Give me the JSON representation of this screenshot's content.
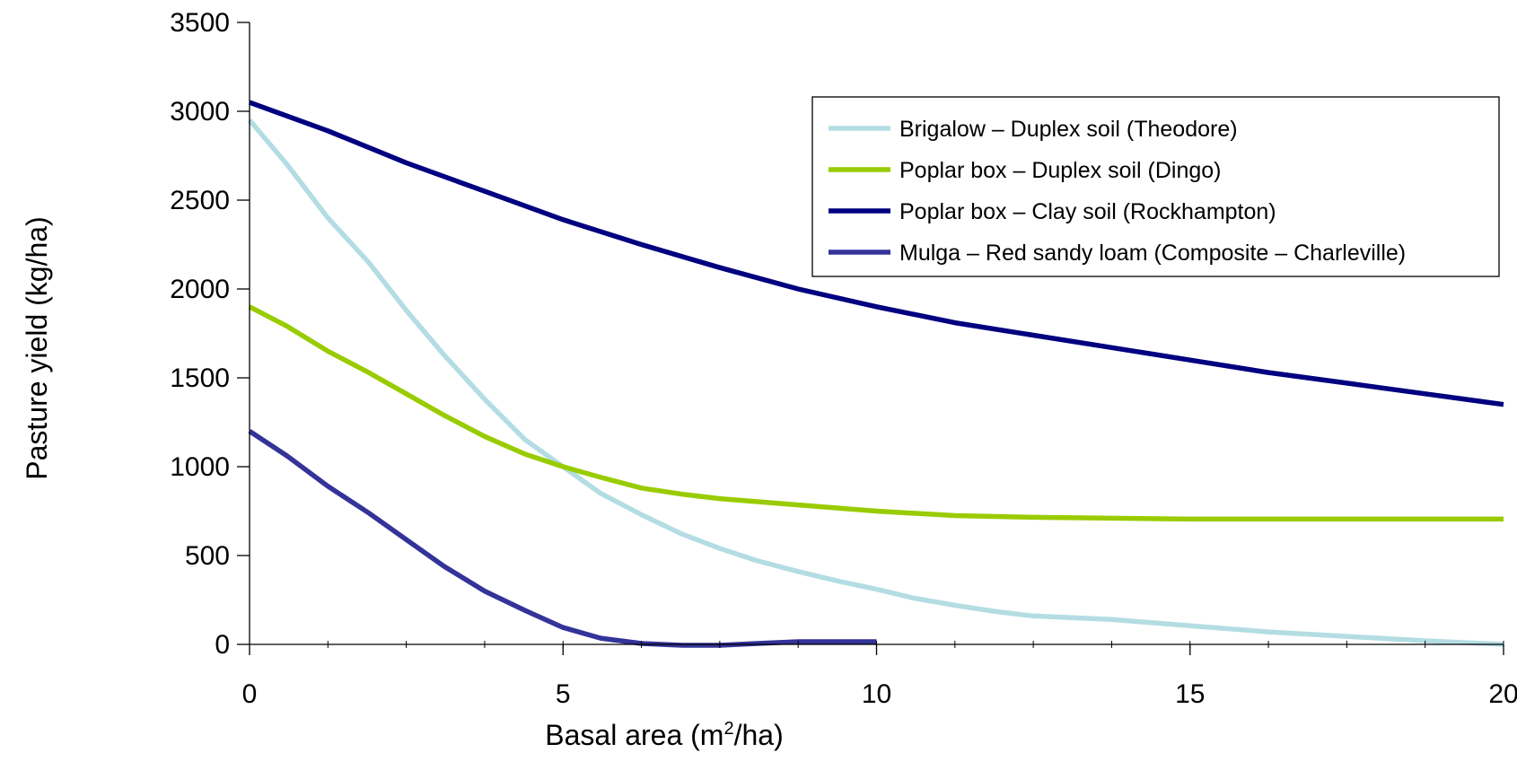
{
  "chart_data": {
    "type": "line",
    "title": "",
    "xlabel_main": "Basal area (m",
    "xlabel_sup": "2",
    "xlabel_tail": "/ha)",
    "ylabel": "Pasture yield (kg/ha)",
    "xlim": [
      0,
      20
    ],
    "ylim": [
      0,
      3500
    ],
    "xticks": [
      "0",
      "5",
      "10",
      "15",
      "20"
    ],
    "yticks": [
      "0",
      "500",
      "1000",
      "1500",
      "2000",
      "2500",
      "3000",
      "3500"
    ],
    "grid": false,
    "legend_position": "top-right",
    "series": [
      {
        "name": "Brigalow – Duplex soil (Theodore)",
        "color": "#b3dde3",
        "x": [
          0,
          0.6,
          1.25,
          1.9,
          2.5,
          3.1,
          3.75,
          4.4,
          5,
          5.6,
          6.25,
          6.9,
          7.5,
          8.1,
          8.75,
          9.4,
          10,
          10.6,
          11.25,
          11.9,
          12.5,
          13.75,
          15,
          16.25,
          17.5,
          18.75,
          20
        ],
        "y": [
          2950,
          2700,
          2400,
          2150,
          1880,
          1630,
          1380,
          1150,
          1000,
          850,
          730,
          620,
          540,
          470,
          410,
          355,
          310,
          260,
          220,
          185,
          160,
          140,
          105,
          70,
          45,
          20,
          0
        ]
      },
      {
        "name": "Poplar box – Duplex soil (Dingo)",
        "color": "#99cc00",
        "x": [
          0,
          0.6,
          1.25,
          1.9,
          2.5,
          3.1,
          3.75,
          4.4,
          5,
          5.6,
          6.25,
          6.9,
          7.5,
          8.75,
          10,
          11.25,
          12.5,
          13.75,
          15,
          16.25,
          17.5,
          18.75,
          20
        ],
        "y": [
          1900,
          1790,
          1650,
          1530,
          1410,
          1290,
          1170,
          1070,
          1000,
          940,
          880,
          845,
          820,
          785,
          750,
          725,
          715,
          710,
          705,
          705,
          705,
          705,
          705
        ]
      },
      {
        "name": "Poplar box – Clay soil (Rockhampton)",
        "color": "#000080",
        "x": [
          0,
          1.25,
          2.5,
          3.75,
          5,
          6.25,
          7.5,
          8.75,
          10,
          11.25,
          12.5,
          13.75,
          15,
          16.25,
          17.5,
          18.75,
          20
        ],
        "y": [
          3050,
          2890,
          2710,
          2550,
          2390,
          2250,
          2120,
          2000,
          1900,
          1810,
          1740,
          1670,
          1600,
          1530,
          1470,
          1410,
          1350
        ]
      },
      {
        "name": "Mulga – Red sandy loam (Composite – Charleville)",
        "color": "#333399",
        "x": [
          0,
          0.6,
          1.25,
          1.9,
          2.5,
          3.1,
          3.75,
          4.4,
          5,
          5.6,
          6.25,
          6.9,
          7.5,
          8.1,
          8.75,
          9.4,
          10
        ],
        "y": [
          1200,
          1060,
          890,
          740,
          590,
          440,
          300,
          190,
          95,
          35,
          5,
          -5,
          -5,
          5,
          15,
          15,
          15
        ]
      }
    ]
  }
}
